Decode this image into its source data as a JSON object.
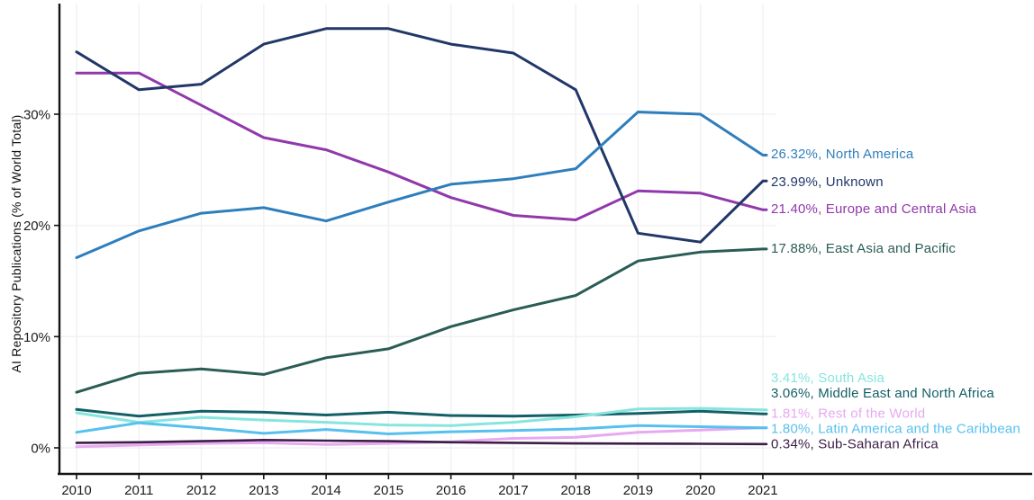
{
  "chart_data": {
    "type": "line",
    "title": "",
    "xlabel": "",
    "ylabel": "AI Repository Publications (% of World Total)",
    "x": [
      2010,
      2011,
      2012,
      2013,
      2014,
      2015,
      2016,
      2017,
      2018,
      2019,
      2020,
      2021
    ],
    "x_tick_labels": [
      "2010",
      "2011",
      "2012",
      "2013",
      "2014",
      "2015",
      "2016",
      "2017",
      "2018",
      "2019",
      "2020",
      "2021"
    ],
    "y_ticks_pct": [
      0,
      10,
      20,
      30
    ],
    "y_tick_labels": [
      "0%",
      "10%",
      "20%",
      "30%"
    ],
    "ylim": [
      -2.3,
      39.8
    ],
    "grid": true,
    "legend_position": "right-end-labels",
    "axis_color": "#141414",
    "grid_color": "#f2f0f3",
    "series": [
      {
        "name": "Europe and Central Asia",
        "end_label": "21.40%, Europe and Central Asia",
        "final_value_pct": 21.4,
        "color": "#9138ab",
        "values": [
          33.7,
          33.7,
          30.8,
          27.9,
          26.8,
          24.8,
          22.5,
          20.9,
          20.5,
          23.1,
          22.9,
          21.4
        ],
        "label_y_pct": 21.5
      },
      {
        "name": "Unknown",
        "end_label": "23.99%, Unknown",
        "final_value_pct": 23.99,
        "color": "#203768",
        "values": [
          35.6,
          32.2,
          32.7,
          36.3,
          37.7,
          37.7,
          36.3,
          35.5,
          32.2,
          19.3,
          18.5,
          23.99
        ],
        "label_y_pct": 23.95
      },
      {
        "name": "North America",
        "end_label": "26.32%, North America",
        "final_value_pct": 26.32,
        "color": "#2e7ebc",
        "values": [
          17.1,
          19.5,
          21.1,
          21.6,
          20.4,
          22.1,
          23.7,
          24.2,
          25.1,
          30.2,
          30.0,
          26.32
        ],
        "label_y_pct": 26.45
      },
      {
        "name": "East Asia and Pacific",
        "end_label": "17.88%, East Asia and Pacific",
        "final_value_pct": 17.88,
        "color": "#2a5c55",
        "values": [
          5.0,
          6.7,
          7.1,
          6.6,
          8.1,
          8.9,
          10.9,
          12.4,
          13.7,
          16.8,
          17.6,
          17.88
        ],
        "label_y_pct": 17.95
      },
      {
        "name": "Middle East and North Africa",
        "end_label": "3.06%, Middle East and North Africa",
        "final_value_pct": 3.06,
        "color": "#135f66",
        "values": [
          3.45,
          2.85,
          3.3,
          3.2,
          2.95,
          3.2,
          2.9,
          2.85,
          2.95,
          3.1,
          3.3,
          3.06
        ],
        "label_y_pct": 4.95
      },
      {
        "name": "South Asia",
        "end_label": "3.41%, South Asia",
        "final_value_pct": 3.41,
        "color": "#86e5de",
        "values": [
          3.15,
          2.3,
          2.75,
          2.5,
          2.3,
          2.05,
          2.0,
          2.3,
          2.8,
          3.5,
          3.55,
          3.41
        ],
        "label_y_pct": 6.3
      },
      {
        "name": "Rest of the World",
        "end_label": "1.81%, Rest of the World",
        "final_value_pct": 1.81,
        "color": "#e7a9f0",
        "values": [
          0.1,
          0.25,
          0.4,
          0.45,
          0.3,
          0.4,
          0.55,
          0.85,
          0.95,
          1.4,
          1.6,
          1.81
        ],
        "label_y_pct": 3.1
      },
      {
        "name": "Latin America and the Caribbean",
        "end_label": "1.80%, Latin America and the Caribbean",
        "final_value_pct": 1.8,
        "color": "#56c1ee",
        "values": [
          1.4,
          2.25,
          1.8,
          1.3,
          1.65,
          1.25,
          1.45,
          1.55,
          1.7,
          2.0,
          1.9,
          1.8
        ],
        "label_y_pct": 1.72
      },
      {
        "name": "Sub-Saharan Africa",
        "end_label": "0.34%, Sub-Saharan Africa",
        "final_value_pct": 0.34,
        "color": "#3b1d46",
        "values": [
          0.45,
          0.5,
          0.6,
          0.7,
          0.65,
          0.6,
          0.5,
          0.45,
          0.4,
          0.38,
          0.36,
          0.34
        ],
        "label_y_pct": 0.35
      }
    ]
  }
}
